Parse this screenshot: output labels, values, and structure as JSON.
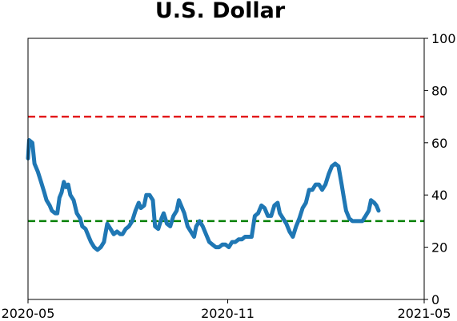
{
  "chart_data": {
    "type": "line",
    "title": "U.S. Dollar",
    "xlabel": "",
    "ylabel": "",
    "x_range": [
      "2020-05-01",
      "2021-05-01"
    ],
    "x_ticks": [
      {
        "date": "2020-05-01",
        "label": "2020-05"
      },
      {
        "date": "2020-11-01",
        "label": "2020-11"
      },
      {
        "date": "2021-05-01",
        "label": "2021-05"
      }
    ],
    "y_axis": {
      "position": "right",
      "ylim": [
        0,
        100
      ],
      "ticks": [
        0,
        20,
        40,
        60,
        80,
        100
      ]
    },
    "grid": false,
    "legend": "none",
    "reference_lines": [
      {
        "y": 70,
        "color": "#e31a1c",
        "style": "dashed"
      },
      {
        "y": 30,
        "color": "#008000",
        "style": "dashed"
      }
    ],
    "series": [
      {
        "color": "#1f77b4",
        "points": [
          [
            "2020-05-01",
            54
          ],
          [
            "2020-05-02",
            61
          ],
          [
            "2020-05-05",
            60
          ],
          [
            "2020-05-07",
            52
          ],
          [
            "2020-05-10",
            49
          ],
          [
            "2020-05-13",
            45
          ],
          [
            "2020-05-16",
            41
          ],
          [
            "2020-05-18",
            38
          ],
          [
            "2020-05-21",
            36
          ],
          [
            "2020-05-23",
            34
          ],
          [
            "2020-05-26",
            33
          ],
          [
            "2020-05-28",
            33
          ],
          [
            "2020-05-30",
            39
          ],
          [
            "2020-06-01",
            41
          ],
          [
            "2020-06-03",
            45
          ],
          [
            "2020-06-05",
            43
          ],
          [
            "2020-06-07",
            44
          ],
          [
            "2020-06-09",
            40
          ],
          [
            "2020-06-12",
            38
          ],
          [
            "2020-06-15",
            33
          ],
          [
            "2020-06-18",
            31
          ],
          [
            "2020-06-20",
            28
          ],
          [
            "2020-06-23",
            27
          ],
          [
            "2020-06-26",
            24
          ],
          [
            "2020-06-28",
            22
          ],
          [
            "2020-07-01",
            20
          ],
          [
            "2020-07-04",
            19
          ],
          [
            "2020-07-07",
            20
          ],
          [
            "2020-07-10",
            22
          ],
          [
            "2020-07-13",
            29
          ],
          [
            "2020-07-16",
            27
          ],
          [
            "2020-07-19",
            25
          ],
          [
            "2020-07-22",
            26
          ],
          [
            "2020-07-25",
            25
          ],
          [
            "2020-07-27",
            25
          ],
          [
            "2020-07-30",
            27
          ],
          [
            "2020-08-02",
            28
          ],
          [
            "2020-08-05",
            30
          ],
          [
            "2020-08-08",
            34
          ],
          [
            "2020-08-11",
            37
          ],
          [
            "2020-08-13",
            35
          ],
          [
            "2020-08-16",
            36
          ],
          [
            "2020-08-18",
            40
          ],
          [
            "2020-08-21",
            40
          ],
          [
            "2020-08-24",
            38
          ],
          [
            "2020-08-26",
            28
          ],
          [
            "2020-08-29",
            27
          ],
          [
            "2020-09-01",
            31
          ],
          [
            "2020-09-03",
            33
          ],
          [
            "2020-09-06",
            29
          ],
          [
            "2020-09-09",
            28
          ],
          [
            "2020-09-12",
            32
          ],
          [
            "2020-09-15",
            34
          ],
          [
            "2020-09-17",
            38
          ],
          [
            "2020-09-20",
            35
          ],
          [
            "2020-09-22",
            33
          ],
          [
            "2020-09-25",
            28
          ],
          [
            "2020-09-28",
            26
          ],
          [
            "2020-10-01",
            24
          ],
          [
            "2020-10-03",
            28
          ],
          [
            "2020-10-06",
            30
          ],
          [
            "2020-10-09",
            28
          ],
          [
            "2020-10-12",
            25
          ],
          [
            "2020-10-15",
            22
          ],
          [
            "2020-10-18",
            21
          ],
          [
            "2020-10-21",
            20
          ],
          [
            "2020-10-24",
            20
          ],
          [
            "2020-10-27",
            21
          ],
          [
            "2020-10-30",
            21
          ],
          [
            "2020-11-02",
            20
          ],
          [
            "2020-11-05",
            22
          ],
          [
            "2020-11-08",
            22
          ],
          [
            "2020-11-11",
            23
          ],
          [
            "2020-11-14",
            23
          ],
          [
            "2020-11-17",
            24
          ],
          [
            "2020-11-20",
            24
          ],
          [
            "2020-11-23",
            24
          ],
          [
            "2020-11-26",
            32
          ],
          [
            "2020-11-29",
            33
          ],
          [
            "2020-12-02",
            36
          ],
          [
            "2020-12-05",
            35
          ],
          [
            "2020-12-08",
            32
          ],
          [
            "2020-12-11",
            32
          ],
          [
            "2020-12-14",
            36
          ],
          [
            "2020-12-17",
            37
          ],
          [
            "2020-12-19",
            33
          ],
          [
            "2020-12-22",
            31
          ],
          [
            "2020-12-25",
            29
          ],
          [
            "2020-12-28",
            26
          ],
          [
            "2020-12-31",
            24
          ],
          [
            "2021-01-03",
            28
          ],
          [
            "2021-01-06",
            31
          ],
          [
            "2021-01-09",
            35
          ],
          [
            "2021-01-12",
            37
          ],
          [
            "2021-01-15",
            42
          ],
          [
            "2021-01-18",
            42
          ],
          [
            "2021-01-21",
            44
          ],
          [
            "2021-01-24",
            44
          ],
          [
            "2021-01-27",
            42
          ],
          [
            "2021-01-30",
            44
          ],
          [
            "2021-02-02",
            48
          ],
          [
            "2021-02-05",
            51
          ],
          [
            "2021-02-08",
            52
          ],
          [
            "2021-02-11",
            51
          ],
          [
            "2021-02-14",
            44
          ],
          [
            "2021-02-16",
            39
          ],
          [
            "2021-02-18",
            34
          ],
          [
            "2021-02-21",
            31
          ],
          [
            "2021-02-24",
            30
          ],
          [
            "2021-02-27",
            30
          ],
          [
            "2021-03-02",
            30
          ],
          [
            "2021-03-05",
            30
          ],
          [
            "2021-03-08",
            32
          ],
          [
            "2021-03-11",
            34
          ],
          [
            "2021-03-13",
            38
          ],
          [
            "2021-03-16",
            37
          ],
          [
            "2021-03-18",
            36
          ],
          [
            "2021-03-20",
            34
          ]
        ]
      }
    ]
  }
}
